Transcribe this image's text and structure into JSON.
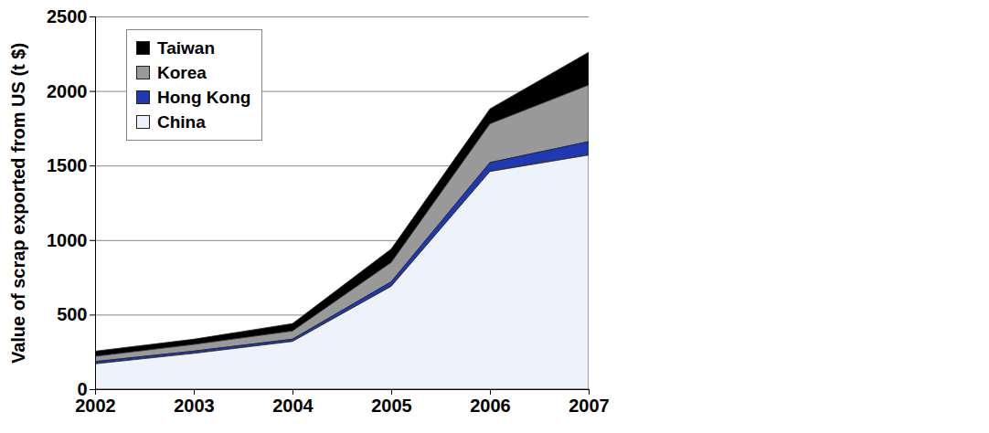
{
  "chart_data": {
    "type": "area",
    "stacked": true,
    "y_label": "Value of scrap exported from US (t $)",
    "x": [
      2002,
      2003,
      2004,
      2005,
      2006,
      2007
    ],
    "xlim": [
      2002,
      2007
    ],
    "xticks": [
      2002,
      2003,
      2004,
      2005,
      2006,
      2007
    ],
    "ylim": [
      0,
      2500
    ],
    "yticks": [
      0,
      500,
      1000,
      1500,
      2000,
      2500
    ],
    "grid": true,
    "legend": "top-left",
    "series": [
      {
        "name": "Taiwan",
        "color": "#000000",
        "values": [
          35,
          35,
          50,
          90,
          100,
          220
        ]
      },
      {
        "name": "Korea",
        "color": "#999999",
        "values": [
          35,
          45,
          55,
          130,
          260,
          380
        ]
      },
      {
        "name": "Hong Kong",
        "color": "#2038b0",
        "values": [
          15,
          15,
          15,
          30,
          60,
          90
        ]
      },
      {
        "name": "China",
        "color": "#eef2fb",
        "values": [
          170,
          240,
          320,
          690,
          1460,
          1570
        ]
      }
    ]
  }
}
